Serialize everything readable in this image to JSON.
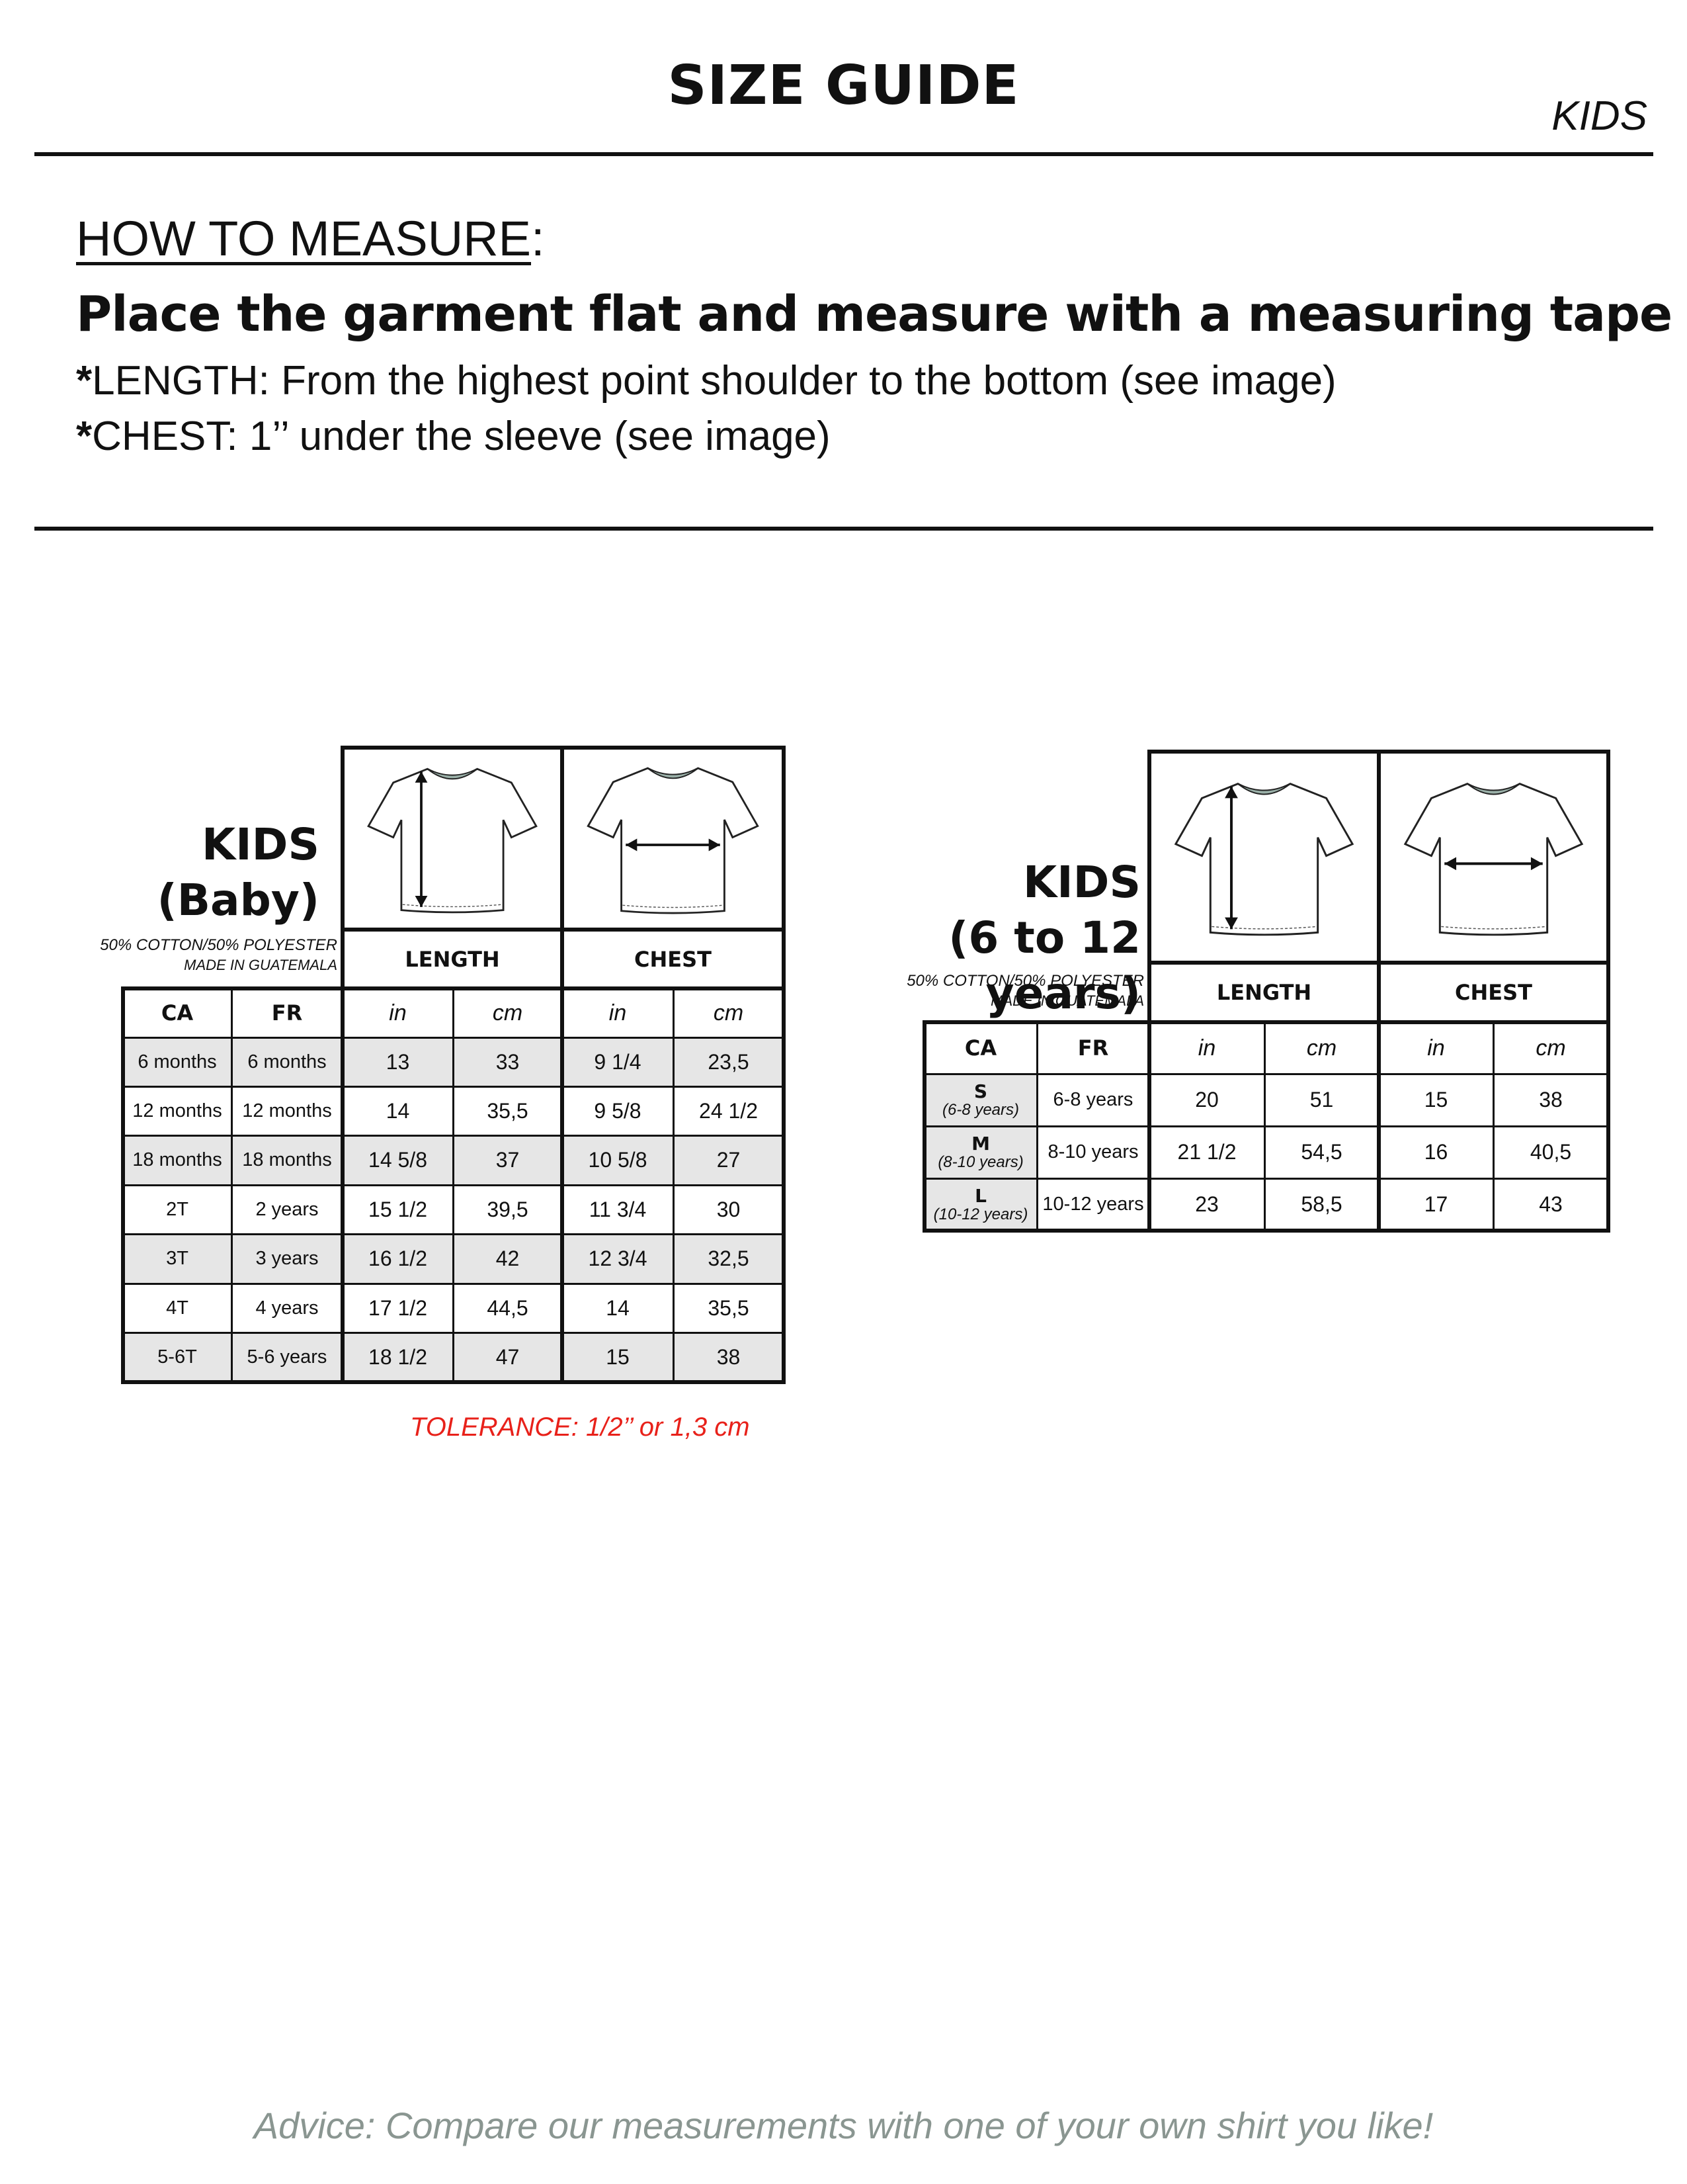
{
  "header": {
    "title": "SIZE GUIDE",
    "category": "KIDS"
  },
  "measure": {
    "heading": "HOW TO MEASURE",
    "heading_suffix": ":",
    "instruction": "Place the garment flat and measure with a measuring tape",
    "length_star": "*",
    "length_text": "LENGTH: From the highest point shoulder to the bottom (see image)",
    "chest_star": "*",
    "chest_text": "CHEST: 1’’ under the sleeve (see image)"
  },
  "baby": {
    "title_line1": "KIDS",
    "title_line2": "(Baby)",
    "fabric": "50% COTTON/50% POLYESTER",
    "origin": "MADE IN GUATEMALA",
    "length_label": "LENGTH",
    "chest_label": "CHEST",
    "col_ca": "CA",
    "col_fr": "FR",
    "unit_in": "in",
    "unit_cm": "cm",
    "rows": [
      {
        "ca": "6 months",
        "fr": "6 months",
        "len_in": "13",
        "len_cm": "33",
        "ch_in": "9 1/4",
        "ch_cm": "23,5"
      },
      {
        "ca": "12 months",
        "fr": "12 months",
        "len_in": "14",
        "len_cm": "35,5",
        "ch_in": "9 5/8",
        "ch_cm": "24 1/2"
      },
      {
        "ca": "18 months",
        "fr": "18 months",
        "len_in": "14 5/8",
        "len_cm": "37",
        "ch_in": "10 5/8",
        "ch_cm": "27"
      },
      {
        "ca": "2T",
        "fr": "2 years",
        "len_in": "15 1/2",
        "len_cm": "39,5",
        "ch_in": "11 3/4",
        "ch_cm": "30"
      },
      {
        "ca": "3T",
        "fr": "3 years",
        "len_in": "16 1/2",
        "len_cm": "42",
        "ch_in": "12 3/4",
        "ch_cm": "32,5"
      },
      {
        "ca": "4T",
        "fr": "4 years",
        "len_in": "17 1/2",
        "len_cm": "44,5",
        "ch_in": "14",
        "ch_cm": "35,5"
      },
      {
        "ca": "5-6T",
        "fr": "5-6 years",
        "len_in": "18 1/2",
        "len_cm": "47",
        "ch_in": "15",
        "ch_cm": "38"
      }
    ],
    "tolerance": "TOLERANCE: 1/2’’ or 1,3 cm"
  },
  "kids": {
    "title_line1": "KIDS",
    "title_line2": "(6 to 12 years)",
    "fabric": "50% COTTON/50% POLYESTER",
    "origin": "MADE IN GUATEMALA",
    "length_label": "LENGTH",
    "chest_label": "CHEST",
    "col_ca": "CA",
    "col_fr": "FR",
    "unit_in": "in",
    "unit_cm": "cm",
    "rows": [
      {
        "ca": "S",
        "ca_sub": "(6-8 years)",
        "fr": "6-8 years",
        "len_in": "20",
        "len_cm": "51",
        "ch_in": "15",
        "ch_cm": "38"
      },
      {
        "ca": "M",
        "ca_sub": "(8-10 years)",
        "fr": "8-10 years",
        "len_in": "21 1/2",
        "len_cm": "54,5",
        "ch_in": "16",
        "ch_cm": "40,5"
      },
      {
        "ca": "L",
        "ca_sub": "(10-12 years)",
        "fr": "10-12 years",
        "len_in": "23",
        "len_cm": "58,5",
        "ch_in": "17",
        "ch_cm": "43"
      }
    ]
  },
  "advice": "Advice: Compare our measurements with one of your own shirt you like!",
  "colors": {
    "tolerance": "#e8211a",
    "advice": "#8a9691",
    "row_shade": "#e6e6e6"
  },
  "icons": [
    "tshirt-length-icon",
    "tshirt-chest-icon"
  ]
}
